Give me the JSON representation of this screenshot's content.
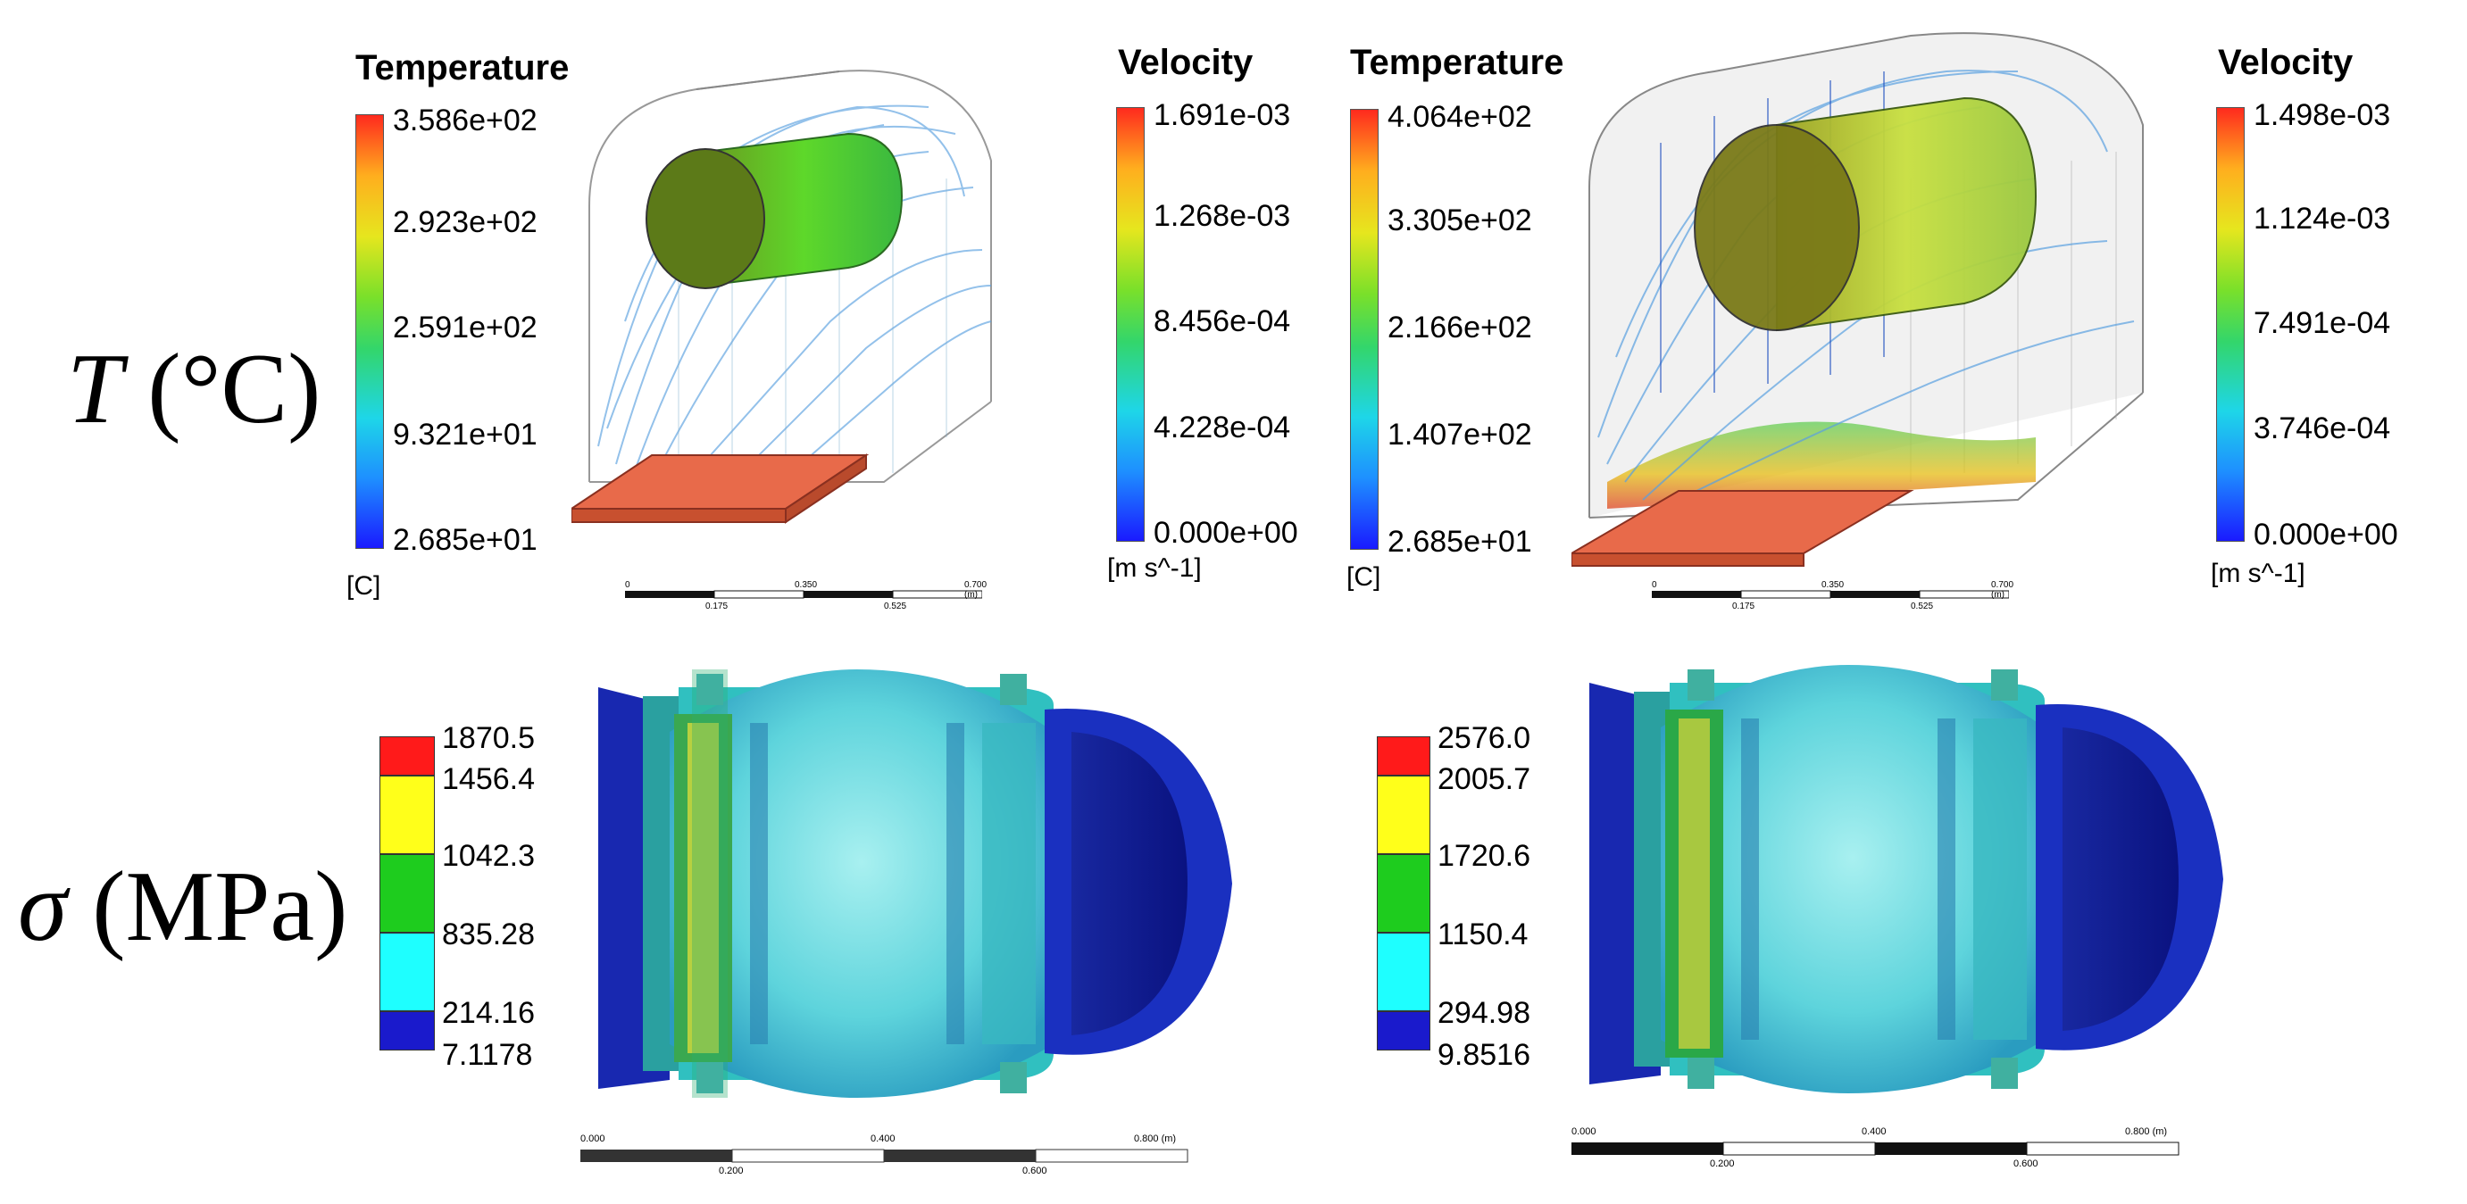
{
  "row_labels": {
    "temperature": {
      "symbol": "T",
      "unit": "(°C)"
    },
    "stress": {
      "symbol": "σ",
      "unit": "(MPa)"
    }
  },
  "panels": {
    "top_left": {
      "temp_bar": {
        "title": "Temperature",
        "ticks": [
          "3.586e+02",
          "2.923e+02",
          "2.591e+02",
          "9.321e+01",
          "2.685e+01"
        ],
        "unit": "[C]"
      },
      "vel_bar": {
        "title": "Velocity",
        "ticks": [
          "1.691e-03",
          "1.268e-03",
          "8.456e-04",
          "4.228e-04",
          "0.000e+00"
        ],
        "unit": "[m s^-1]"
      },
      "scale": {
        "labels_top": [
          "0",
          "0.350",
          "0.700 (m)"
        ],
        "labels_bottom": [
          "0.175",
          "0.525"
        ]
      }
    },
    "top_right": {
      "temp_bar": {
        "title": "Temperature",
        "ticks": [
          "4.064e+02",
          "3.305e+02",
          "2.166e+02",
          "1.407e+02",
          "2.685e+01"
        ],
        "unit": "[C]"
      },
      "vel_bar": {
        "title": "Velocity",
        "ticks": [
          "1.498e-03",
          "1.124e-03",
          "7.491e-04",
          "3.746e-04",
          "0.000e+00"
        ],
        "unit": "[m s^-1]"
      },
      "scale": {
        "labels_top": [
          "0",
          "0.350",
          "0.700 (m)"
        ],
        "labels_bottom": [
          "0.175",
          "0.525"
        ]
      }
    },
    "bottom_left": {
      "legend": [
        "1870.5",
        "1456.4",
        "1042.3",
        "835.28",
        "214.16",
        "7.1178"
      ],
      "scale": {
        "labels_top": [
          "0.000",
          "0.400",
          "0.800 (m)"
        ],
        "labels_bottom": [
          "0.200",
          "0.600"
        ]
      }
    },
    "bottom_right": {
      "legend": [
        "2576.0",
        "2005.7",
        "1720.6",
        "1150.4",
        "294.98",
        "9.8516"
      ],
      "scale": {
        "labels_top": [
          "0.000",
          "0.400",
          "0.800 (m)"
        ],
        "labels_bottom": [
          "0.200",
          "0.600"
        ]
      }
    }
  },
  "colors": {
    "legend_levels": [
      "#ff1a1a",
      "#ffff1a",
      "#1ecc1e",
      "#1effff",
      "#1a1acc"
    ],
    "heater": "#e86a4a",
    "dark_blue": "#1020a8"
  }
}
